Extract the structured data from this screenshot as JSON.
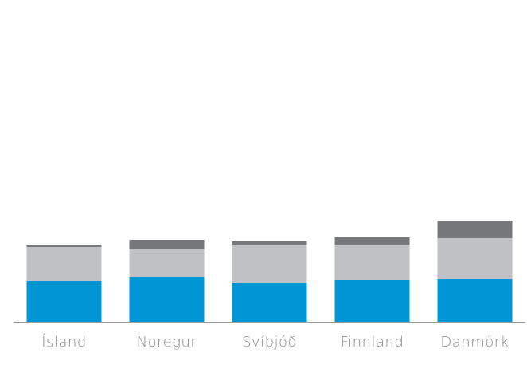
{
  "chart_data": {
    "type": "stacked_bar",
    "categories": [
      "Ísland",
      "Noregur",
      "Svíþjóð",
      "Finnland",
      "Danmörk"
    ],
    "series": [
      {
        "color": "#0096d6",
        "values": [
          51,
          56,
          49,
          52,
          54
        ]
      },
      {
        "color": "#c0c1c4",
        "values": [
          43,
          35,
          48,
          45,
          51
        ]
      },
      {
        "color": "#75777b",
        "values": [
          3,
          12,
          4,
          9,
          22
        ]
      }
    ],
    "ylim": [
      0,
      380
    ]
  }
}
